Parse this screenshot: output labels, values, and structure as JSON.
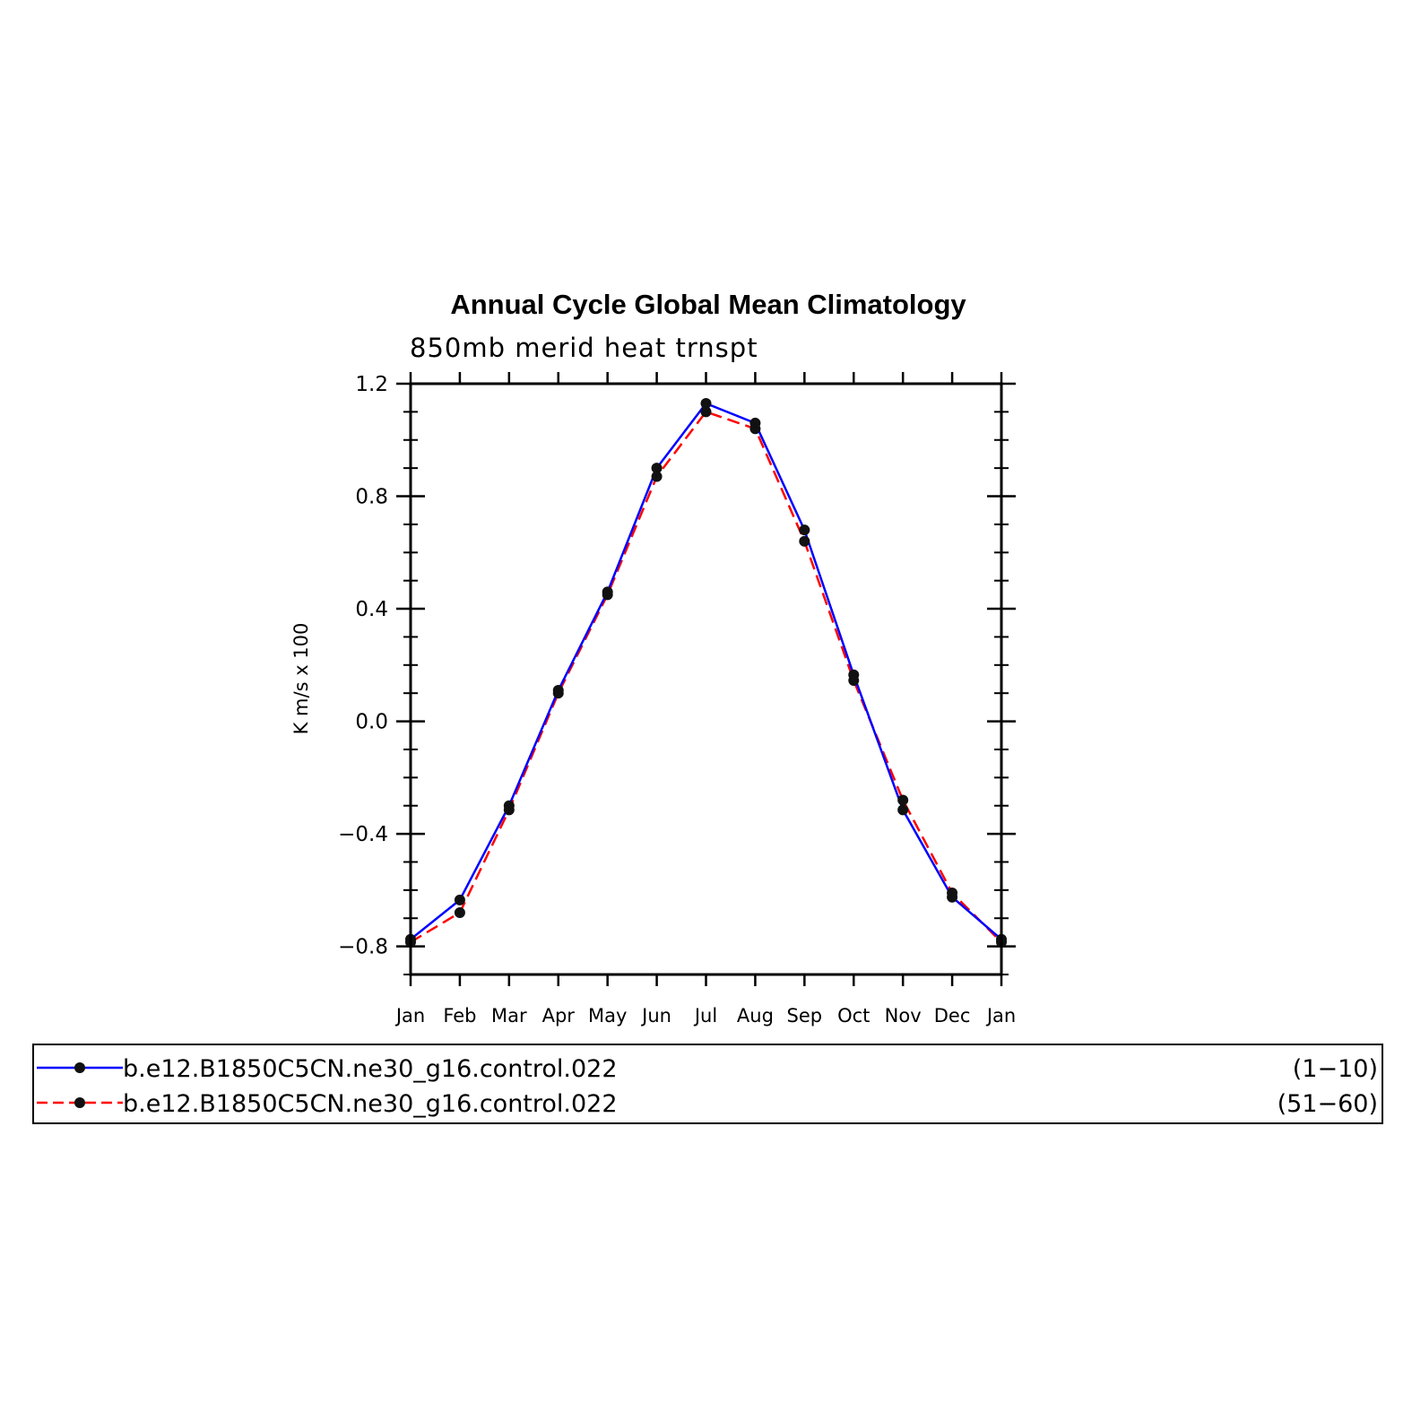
{
  "chart_data": {
    "type": "line",
    "title": "Annual Cycle Global Mean Climatology",
    "subtitle": "850mb merid heat trnspt",
    "ylabel": "K m/s x 100",
    "xlabel": "",
    "categories": [
      "Jan",
      "Feb",
      "Mar",
      "Apr",
      "May",
      "Jun",
      "Jul",
      "Aug",
      "Sep",
      "Oct",
      "Nov",
      "Dec",
      "Jan"
    ],
    "ylim": [
      -0.9,
      1.2
    ],
    "yticks": [
      -0.8,
      -0.4,
      0.0,
      0.4,
      0.8,
      1.2
    ],
    "ytick_labels": [
      "−0.8",
      "−0.4",
      "0.0",
      "0.4",
      "0.8",
      "1.2"
    ],
    "grid": false,
    "legend_position": "bottom",
    "series": [
      {
        "name": "b.e12.B1850C5CN.ne30_g16.control.022",
        "period": "(1−10)",
        "color": "#0000ff",
        "dash": "solid",
        "values": [
          -0.775,
          -0.635,
          -0.3,
          0.11,
          0.46,
          0.9,
          1.13,
          1.06,
          0.68,
          0.165,
          -0.315,
          -0.625,
          -0.775
        ]
      },
      {
        "name": "b.e12.B1850C5CN.ne30_g16.control.022",
        "period": "(51−60)",
        "color": "#ff0000",
        "dash": "dashed",
        "values": [
          -0.785,
          -0.68,
          -0.315,
          0.1,
          0.45,
          0.87,
          1.1,
          1.04,
          0.64,
          0.145,
          -0.28,
          -0.61,
          -0.785
        ]
      }
    ]
  }
}
